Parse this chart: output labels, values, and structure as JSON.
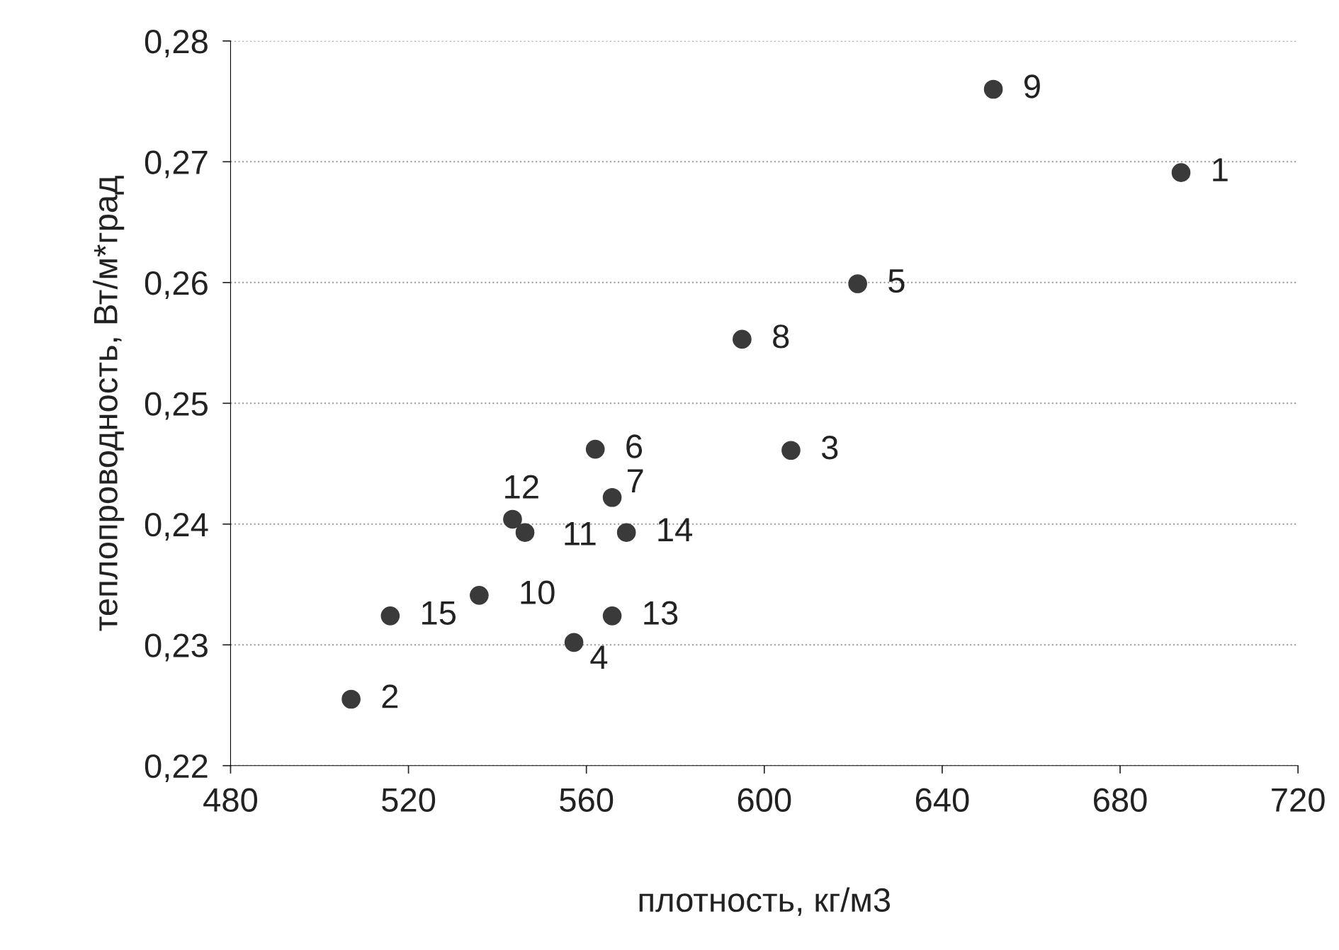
{
  "chart_data": {
    "type": "scatter",
    "xlabel": "плотность, кг/м3",
    "ylabel": "теплопроводность, Вт/м*град",
    "x": [
      693.7,
      507.1,
      606,
      557.2,
      621,
      562,
      565.8,
      595,
      651.5,
      535.9,
      546.2,
      543.4,
      565.8,
      569,
      515.9
    ],
    "series": [
      {
        "color": "#3a3a3a",
        "values": [
          0.2691,
          0.2255,
          0.2461,
          0.2302,
          0.2599,
          0.2462,
          0.2422,
          0.2553,
          0.276,
          0.2341,
          0.2393,
          0.2404,
          0.2324,
          0.2393,
          0.2324
        ]
      }
    ],
    "annotations": [
      {
        "text": "1",
        "x": 693.7,
        "y": 0.2691
      },
      {
        "text": "2",
        "x": 507.1,
        "y": 0.2255
      },
      {
        "text": "3",
        "x": 606,
        "y": 0.2461
      },
      {
        "text": "4",
        "x": 557.2,
        "y": 0.2302
      },
      {
        "text": "5",
        "x": 621,
        "y": 0.2599
      },
      {
        "text": "6",
        "x": 562,
        "y": 0.2462
      },
      {
        "text": "7",
        "x": 565.8,
        "y": 0.2422
      },
      {
        "text": "8",
        "x": 595,
        "y": 0.2553
      },
      {
        "text": "9",
        "x": 651.5,
        "y": 0.276
      },
      {
        "text": "10",
        "x": 535.9,
        "y": 0.2341
      },
      {
        "text": "11",
        "x": 546.2,
        "y": 0.2393
      },
      {
        "text": "12",
        "x": 543.4,
        "y": 0.2404
      },
      {
        "text": "13",
        "x": 565.8,
        "y": 0.2324
      },
      {
        "text": "14",
        "x": 569,
        "y": 0.2393
      },
      {
        "text": "15",
        "x": 515.9,
        "y": 0.2324
      }
    ],
    "xlim": [
      480,
      720
    ],
    "xticks": [
      480,
      520,
      560,
      600,
      640,
      680,
      720
    ],
    "ylim": [
      0.22,
      0.28
    ],
    "yticks": [
      {
        "value": 0.22,
        "label": "0,22"
      },
      {
        "value": 0.23,
        "label": "0,23"
      },
      {
        "value": 0.24,
        "label": "0,24"
      },
      {
        "value": 0.25,
        "label": "0,25"
      },
      {
        "value": 0.26,
        "label": "0,26"
      },
      {
        "value": 0.27,
        "label": "0,27"
      },
      {
        "value": 0.28,
        "label": "0,28"
      }
    ],
    "grid": "y",
    "marker": "circle",
    "legend": false
  }
}
